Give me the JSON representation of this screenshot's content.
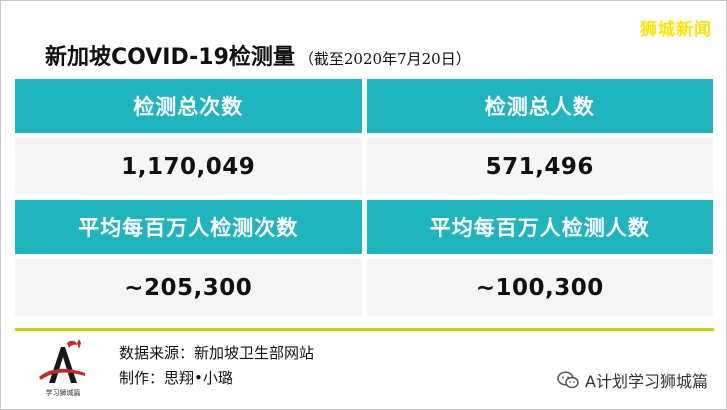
{
  "brand": "狮城新闻",
  "title": "新加坡COVID-19检测量",
  "subtitle": "（截至2020年7月20日）",
  "table": {
    "rows": [
      {
        "headers": [
          "检测总次数",
          "检测总人数"
        ],
        "values": [
          "1,170,049",
          "571,496"
        ]
      },
      {
        "headers": [
          "平均每百万人检测次数",
          "平均每百万人检测人数"
        ],
        "values": [
          "~205,300",
          "~100,300"
        ]
      }
    ]
  },
  "footer": {
    "source": "数据来源：新加坡卫生部网站",
    "credit": "制作：思翔•小璐",
    "logo_text": "学习狮城篇"
  },
  "wechat": {
    "label": "A计划学习狮城篇",
    "icon": "wechat-icon"
  },
  "colors": {
    "header_bg": "#1fb5bf",
    "value_bg": "#f5f5f5",
    "divider": "#c7d400",
    "brand": "#ffe600"
  }
}
